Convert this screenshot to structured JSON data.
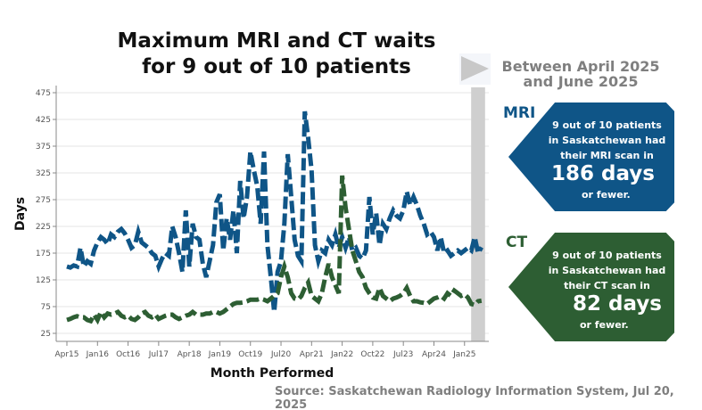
{
  "title_line1": "Maximum MRI and CT waits",
  "title_line2": "for 9 out of 10 patients",
  "period": {
    "line1": "Between April 2025",
    "line2": "and June 2025",
    "play_icon": "play-triangle-icon"
  },
  "mri": {
    "label": "MRI",
    "line1": "9 out of 10 patients",
    "line2": "in Saskatchewan had",
    "line3": "their MRI scan in",
    "days": "186 days",
    "tail": "or fewer.",
    "color": "#0f5587"
  },
  "ct": {
    "label": "CT",
    "line1": "9 out of 10 patients",
    "line2": "in Saskatchewan had",
    "line3": "their CT scan in",
    "days": "82 days",
    "tail": "or fewer.",
    "color": "#2d5e33"
  },
  "source": "Source: Saskatchewan Radiology Information System, Jul 20, 2025",
  "chart_data": {
    "type": "line",
    "xlabel": "Month Performed",
    "ylabel": "Days",
    "x_start": "2015-04",
    "x_end": "2025-06",
    "x_tick_labels": [
      "Apr15",
      "Jan16",
      "Oct16",
      "Jul17",
      "Apr18",
      "Jan19",
      "Oct19",
      "Jul20",
      "Apr21",
      "Jan22",
      "Oct22",
      "Jul23",
      "Apr24",
      "Jan25"
    ],
    "y_ticks": [
      25,
      75,
      125,
      175,
      225,
      275,
      325,
      375,
      425,
      475
    ],
    "ylim": [
      8,
      490
    ],
    "grid": true,
    "highlight_period": [
      "2025-04",
      "2025-06"
    ],
    "series": [
      {
        "key": "mri",
        "color": "#0f5587",
        "style": "dashed",
        "values": [
          150,
          148,
          152,
          150,
          185,
          150,
          160,
          155,
          180,
          195,
          205,
          200,
          192,
          210,
          205,
          215,
          220,
          212,
          200,
          185,
          190,
          215,
          195,
          190,
          185,
          175,
          170,
          150,
          165,
          175,
          170,
          225,
          205,
          175,
          140,
          255,
          150,
          230,
          205,
          200,
          155,
          130,
          160,
          190,
          270,
          285,
          180,
          240,
          200,
          255,
          175,
          310,
          240,
          280,
          365,
          330,
          300,
          230,
          365,
          190,
          130,
          65,
          140,
          160,
          230,
          360,
          280,
          200,
          170,
          160,
          440,
          390,
          330,
          190,
          160,
          180,
          175,
          200,
          190,
          210,
          185,
          205,
          185,
          205,
          180,
          185,
          170,
          165,
          180,
          280,
          210,
          250,
          190,
          230,
          220,
          240,
          255,
          245,
          240,
          255,
          290,
          265,
          280,
          265,
          245,
          230,
          210,
          215,
          205,
          180,
          205,
          175,
          180,
          170,
          175,
          180,
          175,
          180,
          185,
          180,
          205,
          175,
          186
        ]
      },
      {
        "key": "ct",
        "color": "#2d5e33",
        "style": "dashed",
        "values": [
          50,
          52,
          55,
          57,
          55,
          55,
          50,
          48,
          60,
          50,
          65,
          55,
          62,
          60,
          62,
          65,
          58,
          55,
          58,
          52,
          50,
          55,
          62,
          65,
          58,
          55,
          60,
          52,
          55,
          58,
          60,
          60,
          55,
          52,
          55,
          58,
          60,
          65,
          60,
          60,
          60,
          62,
          62,
          65,
          65,
          62,
          65,
          70,
          75,
          80,
          82,
          82,
          83,
          85,
          88,
          88,
          88,
          90,
          88,
          85,
          90,
          95,
          100,
          130,
          150,
          130,
          100,
          90,
          88,
          95,
          110,
          120,
          95,
          90,
          85,
          100,
          130,
          155,
          130,
          115,
          100,
          320,
          260,
          220,
          180,
          160,
          140,
          130,
          110,
          100,
          92,
          90,
          110,
          95,
          90,
          85,
          90,
          92,
          95,
          100,
          110,
          95,
          85,
          85,
          83,
          82,
          80,
          85,
          90,
          92,
          95,
          90,
          100,
          95,
          105,
          100,
          95,
          98,
          92,
          80,
          78,
          85,
          86
        ]
      }
    ]
  }
}
